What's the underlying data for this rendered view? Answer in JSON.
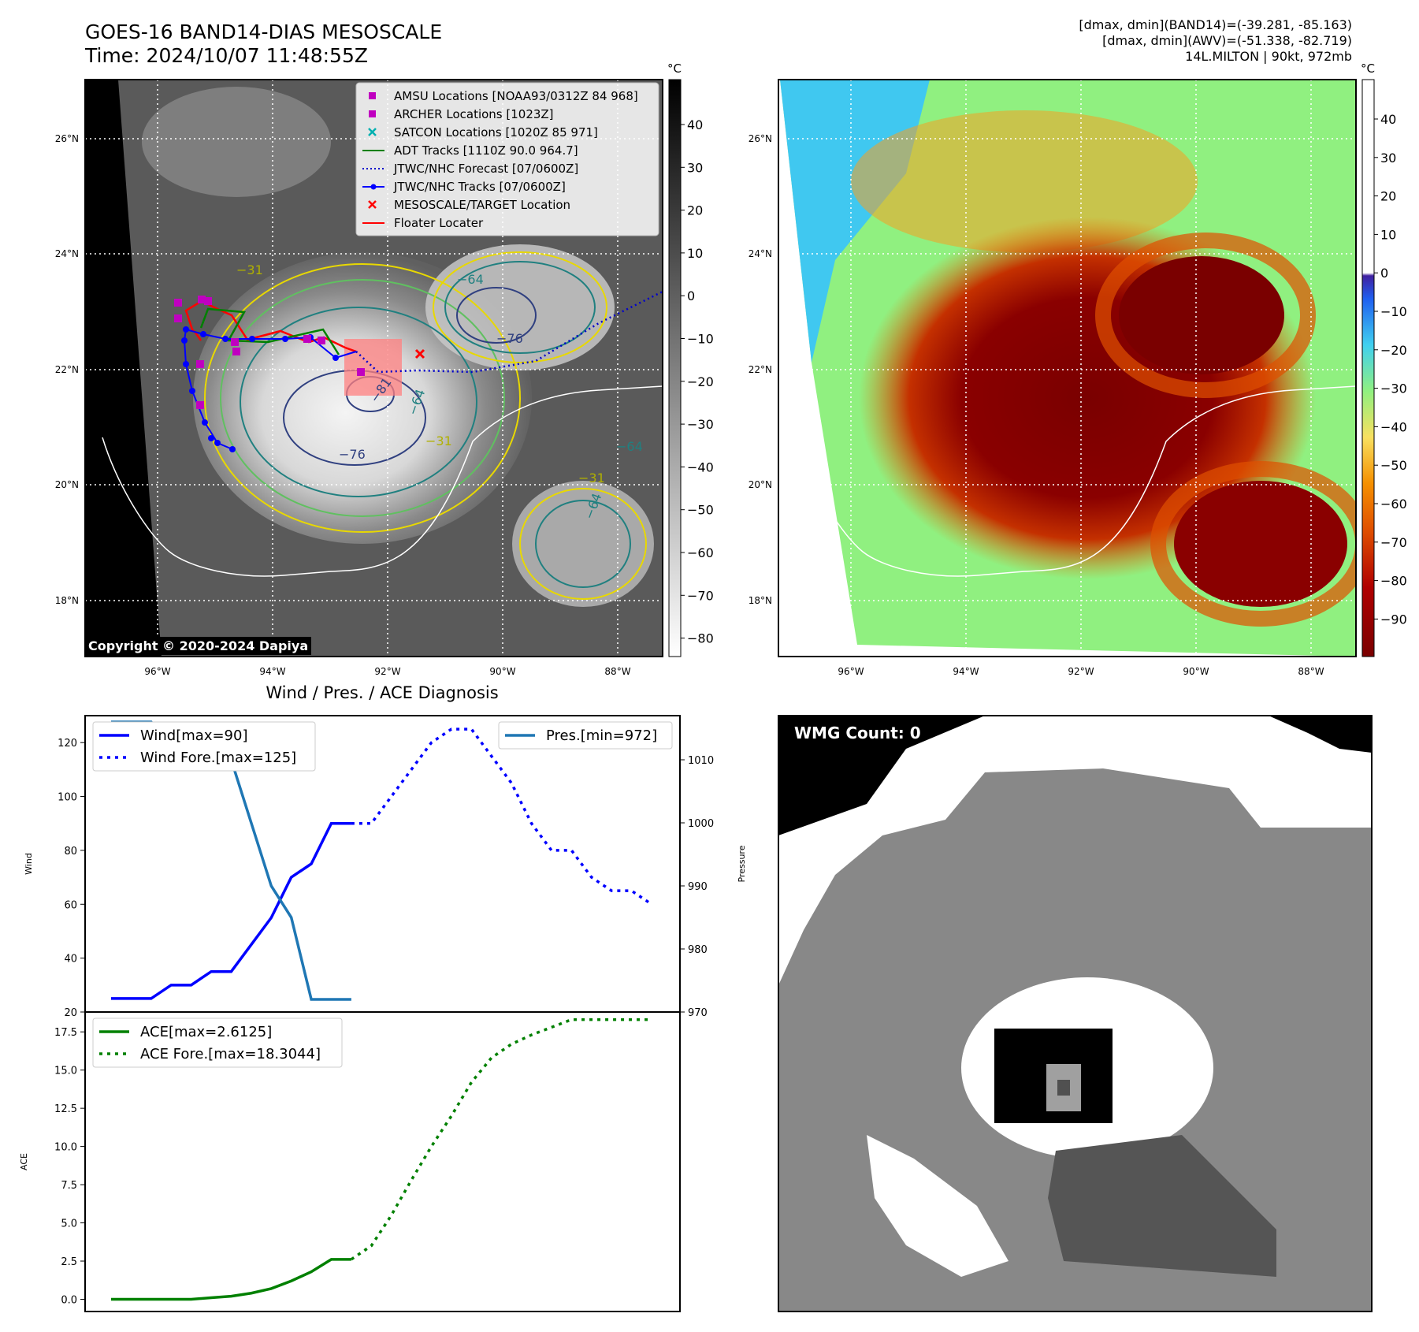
{
  "header": {
    "title_line1": "GOES-16 BAND14-DIAS MESOSCALE",
    "title_line2": "Time: 2024/10/07 11:48:55Z",
    "stats_line1": "[dmax, dmin](BAND14)=(-39.281, -85.163)",
    "stats_line2": "[dmax, dmin](AWV)=(-51.338, -82.719)",
    "stats_line3": "14L.MILTON | 90kt, 972mb"
  },
  "map_left": {
    "copyright": "Copyright © 2020-2024 Dapiya",
    "lat_labels": [
      "26°N",
      "24°N",
      "22°N",
      "20°N",
      "18°N"
    ],
    "lon_labels": [
      "96°W",
      "94°W",
      "92°W",
      "90°W",
      "88°W"
    ],
    "colorbar_unit": "°C",
    "colorbar_ticks": [
      "40",
      "30",
      "20",
      "10",
      "0",
      "−10",
      "−20",
      "−30",
      "−40",
      "−50",
      "−60",
      "−70",
      "−80"
    ],
    "contour_labels": [
      "−81",
      "−76",
      "−64",
      "−31",
      "−76",
      "−64",
      "−64",
      "−31",
      "−64",
      "−31"
    ],
    "legend": [
      {
        "label": "AMSU Locations [NOAA93/0312Z 84 968]",
        "color": "#c000c0",
        "marker": "square"
      },
      {
        "label": "ARCHER Locations [1023Z]",
        "color": "#c000c0",
        "marker": "square"
      },
      {
        "label": "SATCON Locations [1020Z 85 971]",
        "color": "#00b0b0",
        "marker": "x"
      },
      {
        "label": "ADT Tracks [1110Z 90.0 964.7]",
        "color": "#008000",
        "marker": "line"
      },
      {
        "label": "JTWC/NHC Forecast [07/0600Z]",
        "color": "#0000cc",
        "marker": "dotted"
      },
      {
        "label": "JTWC/NHC Tracks [07/0600Z]",
        "color": "#0000ff",
        "marker": "line-dot"
      },
      {
        "label": "MESOSCALE/TARGET Location",
        "color": "#ff0000",
        "marker": "x"
      },
      {
        "label": "Floater Locater",
        "color": "#ff0000",
        "marker": "line"
      }
    ]
  },
  "map_right": {
    "lat_labels": [
      "26°N",
      "24°N",
      "22°N",
      "20°N",
      "18°N"
    ],
    "lon_labels": [
      "96°W",
      "94°W",
      "92°W",
      "90°W",
      "88°W"
    ],
    "colorbar_unit": "°C",
    "colorbar_ticks": [
      "40",
      "30",
      "20",
      "10",
      "0",
      "−10",
      "−20",
      "−30",
      "−40",
      "−50",
      "−60",
      "−70",
      "−80",
      "−90"
    ]
  },
  "wmg_panel": {
    "label": "WMG Count: 0"
  },
  "chart_data": [
    {
      "type": "line",
      "title": "Wind / Pres. / ACE Diagnosis",
      "ylabel": "Wind",
      "ylabel_right": "Pressure",
      "ylim": [
        20,
        130
      ],
      "ylim_right": [
        970,
        1017
      ],
      "yticks": [
        20,
        40,
        60,
        80,
        100,
        120
      ],
      "yticks_right": [
        970,
        980,
        990,
        1000,
        1010
      ],
      "series": [
        {
          "name": "Wind[max=90]",
          "style": "solid",
          "color": "#0000ff",
          "axis": "left",
          "x": [
            0,
            1,
            2,
            3,
            4,
            5,
            6,
            7,
            8,
            9,
            10,
            11,
            12
          ],
          "values": [
            25,
            25,
            25,
            30,
            30,
            35,
            35,
            45,
            55,
            70,
            75,
            90,
            90
          ]
        },
        {
          "name": "Wind Fore.[max=125]",
          "style": "dotted",
          "color": "#0000ff",
          "axis": "left",
          "x": [
            12,
            13,
            14,
            15,
            16,
            17,
            18,
            19,
            20,
            21,
            22,
            23,
            24,
            25,
            26,
            27
          ],
          "values": [
            90,
            90,
            100,
            110,
            120,
            125,
            125,
            115,
            105,
            90,
            80,
            80,
            70,
            65,
            65,
            60
          ]
        },
        {
          "name": "Pres.[min=972]",
          "style": "solid",
          "color": "#1f77b4",
          "axis": "right",
          "x": [
            0,
            1,
            2,
            3,
            4,
            5,
            6,
            7,
            8,
            9,
            10,
            11,
            12
          ],
          "values": [
            1016,
            1016,
            1016,
            1012,
            1012,
            1010,
            1010,
            1000,
            990,
            985,
            972,
            972,
            972
          ]
        }
      ],
      "legend_left": "top-left",
      "legend_right": "top-right"
    },
    {
      "type": "line",
      "ylabel": "ACE",
      "ylim": [
        -0.8,
        18.8
      ],
      "yticks": [
        0.0,
        2.5,
        5.0,
        7.5,
        10.0,
        12.5,
        15.0,
        17.5
      ],
      "ytick_labels": [
        "0.0",
        "2.5",
        "5.0",
        "7.5",
        "10.0",
        "12.5",
        "15.0",
        "17.5"
      ],
      "series": [
        {
          "name": "ACE[max=2.6125]",
          "style": "solid",
          "color": "#008000",
          "x": [
            0,
            1,
            2,
            3,
            4,
            5,
            6,
            7,
            8,
            9,
            10,
            11,
            12
          ],
          "values": [
            0.0,
            0.0,
            0.0,
            0.0,
            0.0,
            0.1,
            0.2,
            0.4,
            0.7,
            1.2,
            1.8,
            2.6125,
            2.6125
          ]
        },
        {
          "name": "ACE Fore.[max=18.3044]",
          "style": "dotted",
          "color": "#008000",
          "x": [
            12,
            13,
            14,
            15,
            16,
            17,
            18,
            19,
            20,
            21,
            22,
            23,
            24,
            25,
            26,
            27
          ],
          "values": [
            2.6125,
            3.5,
            5.5,
            7.8,
            10.0,
            12.0,
            14.2,
            15.8,
            16.7,
            17.3,
            17.8,
            18.3044,
            18.3044,
            18.3044,
            18.3044,
            18.3044
          ]
        }
      ],
      "legend": "top-left"
    }
  ]
}
